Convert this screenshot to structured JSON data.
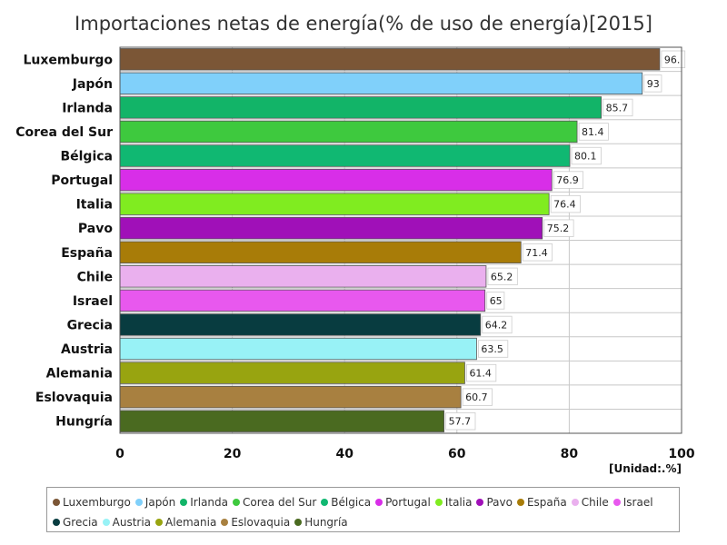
{
  "chart_data": {
    "type": "bar",
    "orientation": "horizontal",
    "title": "Importaciones netas de energía(% de uso de energía)[2015]",
    "unit_label": "[Unidad:.%]",
    "xlim": [
      0,
      100
    ],
    "x_ticks": [
      0,
      20,
      40,
      60,
      80,
      100
    ],
    "grid": true,
    "legend_position": "bottom",
    "categories": [
      "Luxemburgo",
      "Japón",
      "Irlanda",
      "Corea del Sur",
      "Bélgica",
      "Portugal",
      "Italia",
      "Pavo",
      "España",
      "Chile",
      "Israel",
      "Grecia",
      "Austria",
      "Alemania",
      "Eslovaquia",
      "Hungría"
    ],
    "values": [
      96.1,
      93,
      85.7,
      81.4,
      80.1,
      76.9,
      76.4,
      75.2,
      71.4,
      65.2,
      65,
      64.2,
      63.5,
      61.4,
      60.7,
      57.7
    ],
    "value_labels": [
      "96.",
      "93",
      "85.7",
      "81.4",
      "80.1",
      "76.9",
      "76.4",
      "75.2",
      "71.4",
      "65.2",
      "65",
      "64.2",
      "63.5",
      "61.4",
      "60.7",
      "57.7"
    ],
    "colors": [
      "#7b5636",
      "#80d0fa",
      "#12b468",
      "#3ec93e",
      "#10b872",
      "#d82ee8",
      "#80ec20",
      "#a010b8",
      "#a87c08",
      "#eab0ee",
      "#e858ee",
      "#083c40",
      "#98f2f6",
      "#98a410",
      "#a88040",
      "#4a6a20"
    ]
  }
}
